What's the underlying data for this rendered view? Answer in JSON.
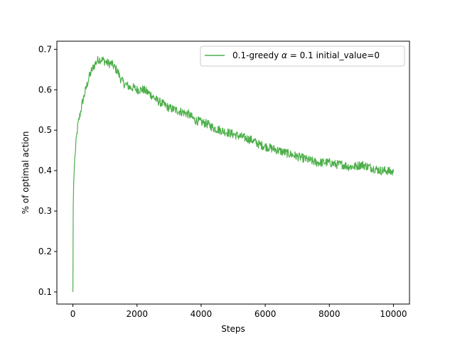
{
  "chart_data": {
    "type": "line",
    "title": "",
    "xlabel": "Steps",
    "ylabel": "% of optimal action",
    "xlim": [
      -500,
      10500
    ],
    "ylim": [
      0.07,
      0.72
    ],
    "x_ticks": [
      0,
      2000,
      4000,
      6000,
      8000,
      10000
    ],
    "y_ticks": [
      0.1,
      0.2,
      0.3,
      0.4,
      0.5,
      0.6,
      0.7
    ],
    "x_tick_labels": [
      "0",
      "2000",
      "4000",
      "6000",
      "8000",
      "10000"
    ],
    "y_tick_labels": [
      "0.1",
      "0.2",
      "0.3",
      "0.4",
      "0.5",
      "0.6",
      "0.7"
    ],
    "grid": false,
    "legend_position": "top-right",
    "series": [
      {
        "name": "0.1-greedy α = 0.1 initial_value=0",
        "legend_prefix": "0.1-greedy ",
        "legend_alpha": "α",
        "legend_suffix": " = 0.1 initial_value=0",
        "color": "#4daf4a",
        "x": [
          0,
          10,
          25,
          50,
          100,
          150,
          200,
          300,
          400,
          500,
          600,
          700,
          800,
          900,
          1000,
          1100,
          1200,
          1300,
          1400,
          1500,
          1600,
          1700,
          1800,
          1900,
          2000,
          2200,
          2400,
          2600,
          2800,
          3000,
          3200,
          3400,
          3600,
          3800,
          4000,
          4200,
          4400,
          4600,
          4800,
          5000,
          5200,
          5400,
          5600,
          5800,
          6000,
          6200,
          6400,
          6600,
          6800,
          7000,
          7200,
          7400,
          7600,
          7800,
          8000,
          8200,
          8400,
          8600,
          8800,
          9000,
          9200,
          9400,
          9600,
          9800,
          10000
        ],
        "y": [
          0.1,
          0.31,
          0.37,
          0.42,
          0.47,
          0.51,
          0.53,
          0.57,
          0.6,
          0.63,
          0.65,
          0.665,
          0.675,
          0.675,
          0.67,
          0.665,
          0.665,
          0.655,
          0.645,
          0.625,
          0.615,
          0.61,
          0.605,
          0.605,
          0.6,
          0.6,
          0.59,
          0.575,
          0.565,
          0.555,
          0.55,
          0.545,
          0.54,
          0.525,
          0.52,
          0.515,
          0.505,
          0.5,
          0.495,
          0.49,
          0.485,
          0.48,
          0.475,
          0.465,
          0.46,
          0.455,
          0.45,
          0.445,
          0.44,
          0.435,
          0.43,
          0.425,
          0.42,
          0.42,
          0.42,
          0.415,
          0.415,
          0.41,
          0.41,
          0.415,
          0.41,
          0.405,
          0.4,
          0.4,
          0.395
        ]
      }
    ]
  }
}
